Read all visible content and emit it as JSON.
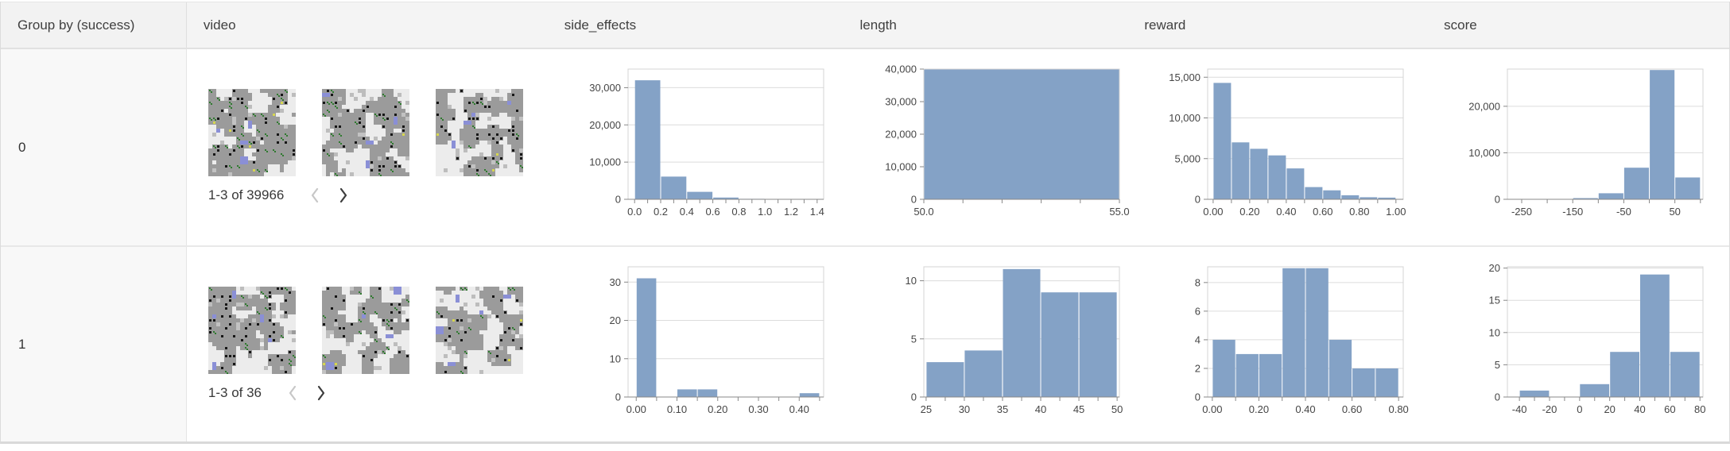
{
  "table": {
    "columns": [
      {
        "label": "Group by (success)"
      },
      {
        "label": "video"
      },
      {
        "label": "side_effects"
      },
      {
        "label": "length"
      },
      {
        "label": "reward"
      },
      {
        "label": "score"
      }
    ],
    "rows": [
      {
        "group": "0",
        "video": {
          "pagination": "1-3 of 39966",
          "prev_enabled": false,
          "next_enabled": true,
          "thumbnails": [
            "gridworld-frame",
            "gridworld-frame",
            "gridworld-frame"
          ]
        }
      },
      {
        "group": "1",
        "video": {
          "pagination": "1-3 of 36",
          "prev_enabled": false,
          "next_enabled": true,
          "thumbnails": [
            "gridworld-frame",
            "gridworld-frame",
            "gridworld-frame"
          ]
        }
      }
    ]
  },
  "chart_data": [
    {
      "type": "bar",
      "subtype": "histogram",
      "group": "0",
      "column": "side_effects",
      "xlim": [
        -0.05,
        1.45
      ],
      "ylim": [
        0,
        35000
      ],
      "grid": true,
      "bins": [
        {
          "x0": 0.0,
          "x1": 0.2,
          "count": 32000
        },
        {
          "x0": 0.2,
          "x1": 0.4,
          "count": 6100
        },
        {
          "x0": 0.4,
          "x1": 0.6,
          "count": 2000
        },
        {
          "x0": 0.6,
          "x1": 0.8,
          "count": 480
        },
        {
          "x0": 0.8,
          "x1": 1.0,
          "count": 120
        },
        {
          "x0": 1.0,
          "x1": 1.2,
          "count": 60
        },
        {
          "x0": 1.2,
          "x1": 1.4,
          "count": 40
        }
      ],
      "x_ticks": [
        {
          "v": 0.0,
          "label": "0.0"
        },
        {
          "v": 0.1,
          "label": ""
        },
        {
          "v": 0.2,
          "label": "0.2"
        },
        {
          "v": 0.3,
          "label": ""
        },
        {
          "v": 0.4,
          "label": "0.4"
        },
        {
          "v": 0.5,
          "label": ""
        },
        {
          "v": 0.6,
          "label": "0.6"
        },
        {
          "v": 0.7,
          "label": ""
        },
        {
          "v": 0.8,
          "label": "0.8"
        },
        {
          "v": 0.9,
          "label": ""
        },
        {
          "v": 1.0,
          "label": "1.0"
        },
        {
          "v": 1.1,
          "label": ""
        },
        {
          "v": 1.2,
          "label": "1.2"
        },
        {
          "v": 1.3,
          "label": ""
        },
        {
          "v": 1.4,
          "label": "1.4"
        }
      ],
      "y_ticks": [
        {
          "v": 0,
          "label": "0"
        },
        {
          "v": 10000,
          "label": "10,000"
        },
        {
          "v": 20000,
          "label": "20,000"
        },
        {
          "v": 30000,
          "label": "30,000"
        }
      ]
    },
    {
      "type": "bar",
      "subtype": "histogram",
      "group": "0",
      "column": "length",
      "xlim": [
        50,
        55
      ],
      "ylim": [
        0,
        40000
      ],
      "grid": true,
      "bins": [
        {
          "x0": 50,
          "x1": 55,
          "count": 39966
        }
      ],
      "x_ticks": [
        {
          "v": 50,
          "label": "50.0"
        },
        {
          "v": 51,
          "label": ""
        },
        {
          "v": 52,
          "label": ""
        },
        {
          "v": 53,
          "label": ""
        },
        {
          "v": 54,
          "label": ""
        },
        {
          "v": 55,
          "label": "55.0"
        }
      ],
      "y_ticks": [
        {
          "v": 0,
          "label": "0"
        },
        {
          "v": 10000,
          "label": "10,000"
        },
        {
          "v": 20000,
          "label": "20,000"
        },
        {
          "v": 30000,
          "label": "30,000"
        },
        {
          "v": 40000,
          "label": "40,000"
        }
      ]
    },
    {
      "type": "bar",
      "subtype": "histogram",
      "group": "0",
      "column": "reward",
      "xlim": [
        -0.03,
        1.04
      ],
      "ylim": [
        0,
        16000
      ],
      "grid": true,
      "bins": [
        {
          "x0": 0.0,
          "x1": 0.1,
          "count": 14300
        },
        {
          "x0": 0.1,
          "x1": 0.2,
          "count": 7000
        },
        {
          "x0": 0.2,
          "x1": 0.3,
          "count": 6200
        },
        {
          "x0": 0.3,
          "x1": 0.4,
          "count": 5400
        },
        {
          "x0": 0.4,
          "x1": 0.5,
          "count": 3800
        },
        {
          "x0": 0.5,
          "x1": 0.6,
          "count": 1500
        },
        {
          "x0": 0.6,
          "x1": 0.7,
          "count": 1100
        },
        {
          "x0": 0.7,
          "x1": 0.8,
          "count": 500
        },
        {
          "x0": 0.8,
          "x1": 0.9,
          "count": 250
        },
        {
          "x0": 0.9,
          "x1": 1.0,
          "count": 200
        }
      ],
      "x_ticks": [
        {
          "v": 0.0,
          "label": "0.00"
        },
        {
          "v": 0.1,
          "label": ""
        },
        {
          "v": 0.2,
          "label": "0.20"
        },
        {
          "v": 0.3,
          "label": ""
        },
        {
          "v": 0.4,
          "label": "0.40"
        },
        {
          "v": 0.5,
          "label": ""
        },
        {
          "v": 0.6,
          "label": "0.60"
        },
        {
          "v": 0.7,
          "label": ""
        },
        {
          "v": 0.8,
          "label": "0.80"
        },
        {
          "v": 0.9,
          "label": ""
        },
        {
          "v": 1.0,
          "label": "1.00"
        }
      ],
      "y_ticks": [
        {
          "v": 0,
          "label": "0"
        },
        {
          "v": 5000,
          "label": "5,000"
        },
        {
          "v": 10000,
          "label": "10,000"
        },
        {
          "v": 15000,
          "label": "15,000"
        }
      ]
    },
    {
      "type": "bar",
      "subtype": "histogram",
      "group": "0",
      "column": "score",
      "xlim": [
        -278,
        105
      ],
      "ylim": [
        0,
        28000
      ],
      "grid": true,
      "bins": [
        {
          "x0": -250,
          "x1": -200,
          "count": 60
        },
        {
          "x0": -200,
          "x1": -150,
          "count": 90
        },
        {
          "x0": -150,
          "x1": -100,
          "count": 250
        },
        {
          "x0": -100,
          "x1": -50,
          "count": 1300
        },
        {
          "x0": -50,
          "x1": 0,
          "count": 6800
        },
        {
          "x0": 0,
          "x1": 50,
          "count": 27800
        },
        {
          "x0": 50,
          "x1": 100,
          "count": 4700
        }
      ],
      "x_ticks": [
        {
          "v": -250,
          "label": "-250"
        },
        {
          "v": -200,
          "label": ""
        },
        {
          "v": -150,
          "label": "-150"
        },
        {
          "v": -100,
          "label": ""
        },
        {
          "v": -50,
          "label": "-50"
        },
        {
          "v": 0,
          "label": ""
        },
        {
          "v": 50,
          "label": "50"
        },
        {
          "v": 100,
          "label": ""
        }
      ],
      "y_ticks": [
        {
          "v": 0,
          "label": "0"
        },
        {
          "v": 10000,
          "label": "10,000"
        },
        {
          "v": 20000,
          "label": "20,000"
        }
      ]
    },
    {
      "type": "bar",
      "subtype": "histogram",
      "group": "1",
      "column": "side_effects",
      "xlim": [
        -0.02,
        0.46
      ],
      "ylim": [
        0,
        34
      ],
      "grid": true,
      "bins": [
        {
          "x0": 0.0,
          "x1": 0.05,
          "count": 31
        },
        {
          "x0": 0.1,
          "x1": 0.15,
          "count": 2
        },
        {
          "x0": 0.15,
          "x1": 0.2,
          "count": 2
        },
        {
          "x0": 0.4,
          "x1": 0.45,
          "count": 1
        }
      ],
      "x_ticks": [
        {
          "v": 0.0,
          "label": "0.00"
        },
        {
          "v": 0.05,
          "label": ""
        },
        {
          "v": 0.1,
          "label": "0.10"
        },
        {
          "v": 0.15,
          "label": ""
        },
        {
          "v": 0.2,
          "label": "0.20"
        },
        {
          "v": 0.25,
          "label": ""
        },
        {
          "v": 0.3,
          "label": "0.30"
        },
        {
          "v": 0.35,
          "label": ""
        },
        {
          "v": 0.4,
          "label": "0.40"
        },
        {
          "v": 0.45,
          "label": ""
        }
      ],
      "y_ticks": [
        {
          "v": 0,
          "label": "0"
        },
        {
          "v": 10,
          "label": "10"
        },
        {
          "v": 20,
          "label": "20"
        },
        {
          "v": 30,
          "label": "30"
        }
      ]
    },
    {
      "type": "bar",
      "subtype": "histogram",
      "group": "1",
      "column": "length",
      "xlim": [
        24.7,
        50.3
      ],
      "ylim": [
        0,
        11.2
      ],
      "grid": true,
      "bins": [
        {
          "x0": 25,
          "x1": 30,
          "count": 3
        },
        {
          "x0": 30,
          "x1": 35,
          "count": 4
        },
        {
          "x0": 35,
          "x1": 40,
          "count": 11
        },
        {
          "x0": 40,
          "x1": 45,
          "count": 9
        },
        {
          "x0": 45,
          "x1": 50,
          "count": 9
        }
      ],
      "x_ticks": [
        {
          "v": 25,
          "label": "25"
        },
        {
          "v": 27.5,
          "label": ""
        },
        {
          "v": 30,
          "label": "30"
        },
        {
          "v": 32.5,
          "label": ""
        },
        {
          "v": 35,
          "label": "35"
        },
        {
          "v": 37.5,
          "label": ""
        },
        {
          "v": 40,
          "label": "40"
        },
        {
          "v": 42.5,
          "label": ""
        },
        {
          "v": 45,
          "label": "45"
        },
        {
          "v": 47.5,
          "label": ""
        },
        {
          "v": 50,
          "label": "50"
        }
      ],
      "y_ticks": [
        {
          "v": 0,
          "label": "0"
        },
        {
          "v": 5,
          "label": "5"
        },
        {
          "v": 10,
          "label": "10"
        }
      ]
    },
    {
      "type": "bar",
      "subtype": "histogram",
      "group": "1",
      "column": "reward",
      "xlim": [
        -0.02,
        0.82
      ],
      "ylim": [
        0,
        9.1
      ],
      "grid": true,
      "bins": [
        {
          "x0": 0.0,
          "x1": 0.1,
          "count": 4
        },
        {
          "x0": 0.1,
          "x1": 0.2,
          "count": 3
        },
        {
          "x0": 0.2,
          "x1": 0.3,
          "count": 3
        },
        {
          "x0": 0.3,
          "x1": 0.4,
          "count": 9
        },
        {
          "x0": 0.4,
          "x1": 0.5,
          "count": 9
        },
        {
          "x0": 0.5,
          "x1": 0.6,
          "count": 4
        },
        {
          "x0": 0.6,
          "x1": 0.7,
          "count": 2
        },
        {
          "x0": 0.7,
          "x1": 0.8,
          "count": 2
        }
      ],
      "x_ticks": [
        {
          "v": 0.0,
          "label": "0.00"
        },
        {
          "v": 0.1,
          "label": ""
        },
        {
          "v": 0.2,
          "label": "0.20"
        },
        {
          "v": 0.3,
          "label": ""
        },
        {
          "v": 0.4,
          "label": "0.40"
        },
        {
          "v": 0.5,
          "label": ""
        },
        {
          "v": 0.6,
          "label": "0.60"
        },
        {
          "v": 0.7,
          "label": ""
        },
        {
          "v": 0.8,
          "label": "0.80"
        }
      ],
      "y_ticks": [
        {
          "v": 0,
          "label": "0"
        },
        {
          "v": 2,
          "label": "2"
        },
        {
          "v": 4,
          "label": "4"
        },
        {
          "v": 6,
          "label": "6"
        },
        {
          "v": 8,
          "label": "8"
        }
      ]
    },
    {
      "type": "bar",
      "subtype": "histogram",
      "group": "1",
      "column": "score",
      "xlim": [
        -48,
        82
      ],
      "ylim": [
        0,
        20.2
      ],
      "grid": true,
      "bins": [
        {
          "x0": -40,
          "x1": -20,
          "count": 1
        },
        {
          "x0": 0,
          "x1": 20,
          "count": 2
        },
        {
          "x0": 20,
          "x1": 40,
          "count": 7
        },
        {
          "x0": 40,
          "x1": 60,
          "count": 19
        },
        {
          "x0": 60,
          "x1": 80,
          "count": 7
        }
      ],
      "x_ticks": [
        {
          "v": -40,
          "label": "-40"
        },
        {
          "v": -30,
          "label": ""
        },
        {
          "v": -20,
          "label": "-20"
        },
        {
          "v": -10,
          "label": ""
        },
        {
          "v": 0,
          "label": "0"
        },
        {
          "v": 10,
          "label": ""
        },
        {
          "v": 20,
          "label": "20"
        },
        {
          "v": 30,
          "label": ""
        },
        {
          "v": 40,
          "label": "40"
        },
        {
          "v": 50,
          "label": ""
        },
        {
          "v": 60,
          "label": "60"
        },
        {
          "v": 70,
          "label": ""
        },
        {
          "v": 80,
          "label": "80"
        }
      ],
      "y_ticks": [
        {
          "v": 0,
          "label": "0"
        },
        {
          "v": 5,
          "label": "5"
        },
        {
          "v": 10,
          "label": "10"
        },
        {
          "v": 15,
          "label": "15"
        },
        {
          "v": 20,
          "label": "20"
        }
      ]
    }
  ],
  "colors": {
    "bar_fill": "#84a2c6",
    "axis": "#888888",
    "grid": "#dcdcdc",
    "plot_border": "#d4d4d4",
    "tick_label": "#454545",
    "header_bg": "#f4f4f4",
    "group_col_bg": "#f8f8f8",
    "row_divider": "#e8e8e8",
    "chevron_disabled": "#c7c7c7",
    "chevron_enabled": "#3d3d3d",
    "thumb_gray": "#9b9b9b",
    "thumb_light": "#ececec",
    "thumb_black": "#161616",
    "thumb_green": "#2f7a2f",
    "thumb_blue": "#8a8fd6",
    "thumb_speckle": "#c2c2c2",
    "thumb_yellow": "#d6d650"
  }
}
